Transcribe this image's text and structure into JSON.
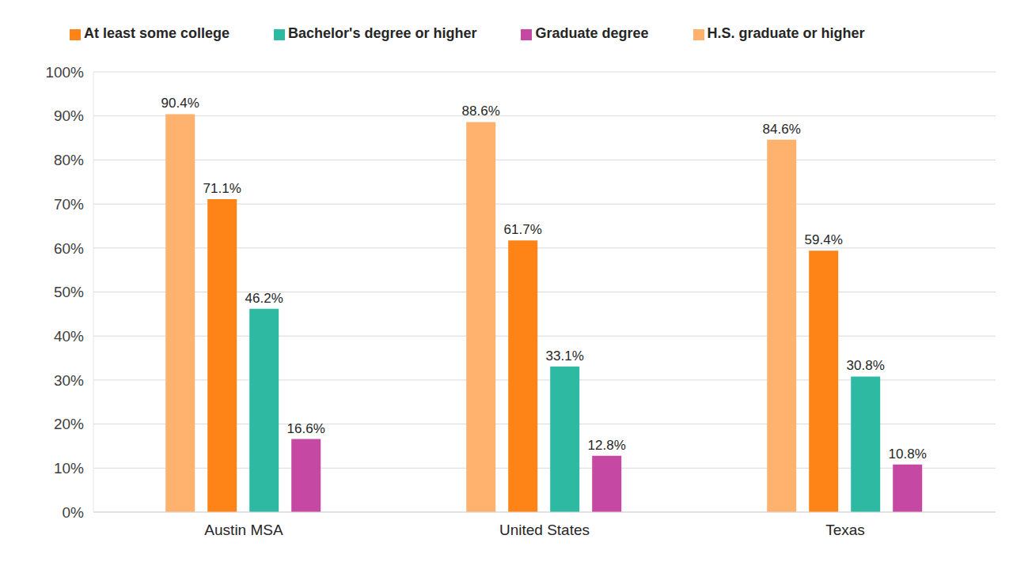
{
  "chart_data": {
    "type": "bar",
    "categories": [
      "Austin MSA",
      "United States",
      "Texas"
    ],
    "series": [
      {
        "name": "H.S. graduate or higher",
        "color": "#FFB26E",
        "values": [
          90.4,
          88.6,
          84.6
        ],
        "value_labels": [
          "90.4%",
          "88.6%",
          "84.6%"
        ]
      },
      {
        "name": "At least some college",
        "color": "#FF8418",
        "values": [
          71.1,
          61.7,
          59.4
        ],
        "value_labels": [
          "71.1%",
          "61.7%",
          "59.4%"
        ]
      },
      {
        "name": "Bachelor's degree or higher",
        "color": "#2EB9A3",
        "values": [
          46.2,
          33.1,
          30.8
        ],
        "value_labels": [
          "46.2%",
          "33.1%",
          "30.8%"
        ]
      },
      {
        "name": "Graduate degree",
        "color": "#C548A2",
        "values": [
          16.6,
          12.8,
          10.8
        ],
        "value_labels": [
          "16.6%",
          "12.8%",
          "10.8%"
        ]
      }
    ],
    "ylim": [
      0,
      100
    ],
    "yticks": [
      {
        "value": 0,
        "label": "0%"
      },
      {
        "value": 10,
        "label": "10%"
      },
      {
        "value": 20,
        "label": "20%"
      },
      {
        "value": 30,
        "label": "30%"
      },
      {
        "value": 40,
        "label": "40%"
      },
      {
        "value": 50,
        "label": "50%"
      },
      {
        "value": 60,
        "label": "60%"
      },
      {
        "value": 70,
        "label": "70%"
      },
      {
        "value": 80,
        "label": "80%"
      },
      {
        "value": 90,
        "label": "90%"
      },
      {
        "value": 100,
        "label": "100%"
      }
    ],
    "grid": true,
    "legend": "top",
    "data_labels": true
  }
}
